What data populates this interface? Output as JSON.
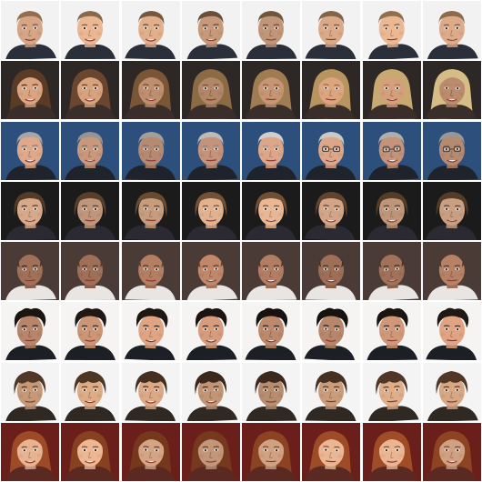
{
  "grid": {
    "rows": 8,
    "cols": 8,
    "rows_data": [
      {
        "subject": "man-light-brown-hair-smiling",
        "background": "#f2f2f2",
        "skin": "#e3b08d",
        "hair": "#8a6a4a",
        "hair_style": "short",
        "clothing": "#2a2f3a",
        "glasses": false
      },
      {
        "subject": "woman-long-hair-turning-blonde",
        "background": "#2d2826",
        "skin": "#d4a07c",
        "hair_colors": [
          "#5a3b26",
          "#6a4630",
          "#7b5636",
          "#8c6a44",
          "#a07c52",
          "#b8955f",
          "#c9a972",
          "#d6bc85"
        ],
        "hair_style": "long",
        "clothing": "#3a2e2a",
        "glasses": false
      },
      {
        "subject": "older-man-gray-hair-adds-glasses",
        "background": "#2d4f7c",
        "skin": "#d9a386",
        "hair": "#c8c6c2",
        "hair_style": "short",
        "clothing": "#1f232c",
        "glasses_from_col": 5
      },
      {
        "subject": "woman-short-hair-smiling",
        "background": "#1b1b1b",
        "skin": "#e2b190",
        "hair": "#6e4e34",
        "hair_style": "bob",
        "clothing": "#2b2a33",
        "glasses": false
      },
      {
        "subject": "bald-man-dark-background",
        "background": "#4a3b36",
        "skin": "#b98266",
        "hair": "#5a3d2c",
        "hair_style": "bald",
        "clothing": "#e8e5e2",
        "glasses": false
      },
      {
        "subject": "man-dark-curly-hair",
        "background": "#f5f4f3",
        "skin": "#d89e7d",
        "hair": "#1e1714",
        "hair_style": "curly",
        "clothing": "#1d1f27",
        "glasses": false
      },
      {
        "subject": "young-man-shaggy-hair",
        "background": "#f4f4f4",
        "skin": "#d8a783",
        "hair": "#4d3525",
        "hair_style": "shaggy",
        "clothing": "#302822",
        "glasses": false
      },
      {
        "subject": "woman-auburn-hair-red-background",
        "background": "#6b1f1a",
        "skin": "#e6b290",
        "hair": "#9a4a26",
        "hair_style": "long",
        "clothing": "#5a2a22",
        "glasses": false
      }
    ]
  }
}
